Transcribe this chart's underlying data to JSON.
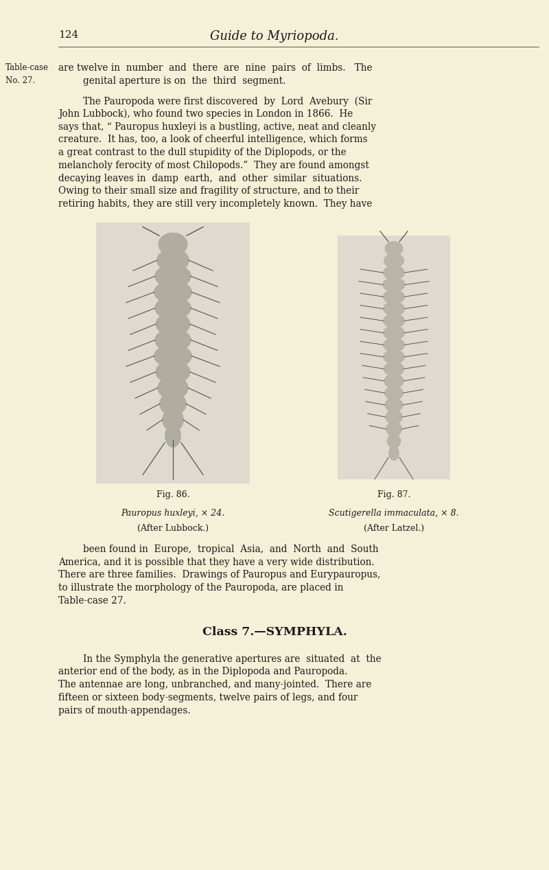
{
  "bg_color": "#f5f0d8",
  "page_width": 8.0,
  "page_height": 12.67,
  "dpi": 100,
  "header_page_num": "124",
  "header_title": "Guide to Myriopoda.",
  "text_color": "#1a1a1a",
  "sidenote_label1": "Table-case",
  "sidenote_label2": "No. 27.",
  "para1_line1": "are twelve in  number  and  there  are  nine  pairs  of  limbs.   The",
  "para1_line2": "genital aperture is on  the  third  segment.",
  "para2": "The Pauropoda were first discovered  by  Lord  Avebury  (Sir\nJohn Lubbock), who found two species in London in 1866.  He\nsays that, “ Pauropus huxleyi is a bustling, active, neat and cleanly\ncreature.  It has, too, a look of cheerful intelligence, which forms\na great contrast to the dull stupidity of the Diplopods, or the\nmelancholy ferocity of most Chilopods.”  They are found amongst\ndecaying leaves in  damp  earth,  and  other  similar  situations.\nOwing to their small size and fragility of structure, and to their\nretiring habits, they are still very incompletely known.  They have",
  "fig86_label": "Fig. 86.",
  "fig86_caption_line1": "Pauropus huxleyi, × 24.",
  "fig86_caption_line2": "(After Lubbock.)",
  "fig87_label": "Fig. 87.",
  "fig87_caption_line1": "Scutigerella immaculata, × 8.",
  "fig87_caption_line2": "(After Latzel.)",
  "para3": "been found in  Europe,  tropical  Asia,  and  North  and  South\nAmerica, and it is possible that they have a very wide distribution.\nThere are three families.  Drawings of Pauropus and Eurypauropus,\nto illustrate the morphology of the Pauropoda, are placed in\nTable-case 27.",
  "class_heading": "Class 7.—SYMPHYLA.",
  "para4": "In the Symphyla the generative apertures are  situated  at  the\nanterior end of the body, as in the Diplopoda and Pauropoda.\nThe antennae are long, unbranched, and many-jointed.  There are\nfifteen or sixteen body-segments, twelve pairs of legs, and four\npairs of mouth-appendages.",
  "fig_bg": "#dedad0",
  "body_color": "#b0aca0",
  "body_color2": "#b8b4a8",
  "line_color": "#555550"
}
